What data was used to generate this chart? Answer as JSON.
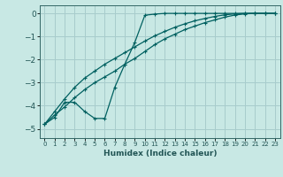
{
  "xlabel": "Humidex (Indice chaleur)",
  "ylabel": "",
  "background_color": "#c8e8e4",
  "grid_color": "#a8cccc",
  "line_color": "#006060",
  "xlim": [
    -0.5,
    23.5
  ],
  "ylim": [
    -5.4,
    0.35
  ],
  "yticks": [
    0,
    -1,
    -2,
    -3,
    -4,
    -5
  ],
  "xticks": [
    0,
    1,
    2,
    3,
    4,
    5,
    6,
    7,
    8,
    9,
    10,
    11,
    12,
    13,
    14,
    15,
    16,
    17,
    18,
    19,
    20,
    21,
    22,
    23
  ],
  "series1_x": [
    0,
    1,
    2,
    3,
    4,
    5,
    6,
    7,
    8,
    9,
    10,
    11,
    12,
    13,
    14,
    15,
    16,
    17,
    18,
    19,
    20,
    21,
    22,
    23
  ],
  "series1_y": [
    -4.8,
    -4.5,
    -3.85,
    -3.85,
    -4.25,
    -4.55,
    -4.55,
    -3.2,
    -2.2,
    -1.25,
    -0.08,
    -0.03,
    0.0,
    0.0,
    0.0,
    0.0,
    0.0,
    0.0,
    0.0,
    0.0,
    0.0,
    0.0,
    0.0,
    0.0
  ],
  "series2_x": [
    0,
    1,
    2,
    3,
    4,
    5,
    6,
    7,
    8,
    9,
    10,
    11,
    12,
    13,
    14,
    15,
    16,
    17,
    18,
    19,
    20,
    21,
    22,
    23
  ],
  "series2_y": [
    -4.8,
    -4.4,
    -4.05,
    -3.65,
    -3.3,
    -3.0,
    -2.75,
    -2.5,
    -2.2,
    -1.95,
    -1.65,
    -1.35,
    -1.1,
    -0.9,
    -0.7,
    -0.55,
    -0.4,
    -0.28,
    -0.16,
    -0.07,
    -0.02,
    0.0,
    0.0,
    0.0
  ],
  "series3_x": [
    0,
    1,
    2,
    3,
    4,
    5,
    6,
    7,
    8,
    9,
    10,
    11,
    12,
    13,
    14,
    15,
    16,
    17,
    18,
    19,
    20,
    21,
    22,
    23
  ],
  "series3_y": [
    -4.8,
    -4.25,
    -3.7,
    -3.2,
    -2.8,
    -2.5,
    -2.2,
    -1.95,
    -1.7,
    -1.45,
    -1.2,
    -0.97,
    -0.78,
    -0.6,
    -0.45,
    -0.32,
    -0.22,
    -0.13,
    -0.06,
    -0.02,
    0.0,
    0.0,
    0.0,
    0.0
  ]
}
